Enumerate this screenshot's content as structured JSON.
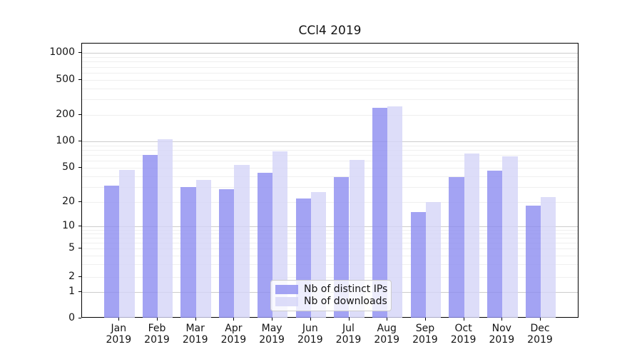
{
  "chart_data": {
    "type": "bar",
    "title": "CCl4 2019",
    "categories": [
      "Jan 2019",
      "Feb 2019",
      "Mar 2019",
      "Apr 2019",
      "May 2019",
      "Jun 2019",
      "Jul 2019",
      "Aug 2019",
      "Sep 2019",
      "Oct 2019",
      "Nov 2019",
      "Dec 2019"
    ],
    "series": [
      {
        "name": "Nb of distinct IPs",
        "color": "#8c8cf0",
        "opacity": 0.8,
        "values": [
          31,
          70,
          30,
          28,
          44,
          22,
          39,
          240,
          15,
          39,
          46,
          18
        ]
      },
      {
        "name": "Nb of downloads",
        "color": "#d5d5f7",
        "opacity": 0.8,
        "values": [
          47,
          105,
          36,
          54,
          77,
          26,
          62,
          252,
          20,
          73,
          68,
          23
        ]
      }
    ],
    "xlabel": "",
    "ylabel": "",
    "yscale": "symlog",
    "yticks": [
      0,
      1,
      2,
      5,
      10,
      20,
      50,
      100,
      200,
      500,
      1000
    ],
    "ylim": [
      0,
      1280
    ],
    "grid": "on",
    "grid_major_at": [
      1,
      10,
      100,
      1000
    ],
    "legend_position": "lower center"
  }
}
